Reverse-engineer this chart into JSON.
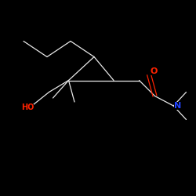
{
  "background_color": "#000000",
  "line_color": "#e8e8e8",
  "O_color": "#ff2200",
  "N_color": "#2244ff",
  "HO_color": "#ff2200",
  "fig_size": [
    2.5,
    2.5
  ],
  "dpi": 100,
  "font_size": 7,
  "lw": 0.9,
  "xlim": [
    0,
    10
  ],
  "ylim": [
    0,
    10
  ],
  "atoms": {
    "O": "O",
    "N": "N",
    "HO": "HO"
  }
}
